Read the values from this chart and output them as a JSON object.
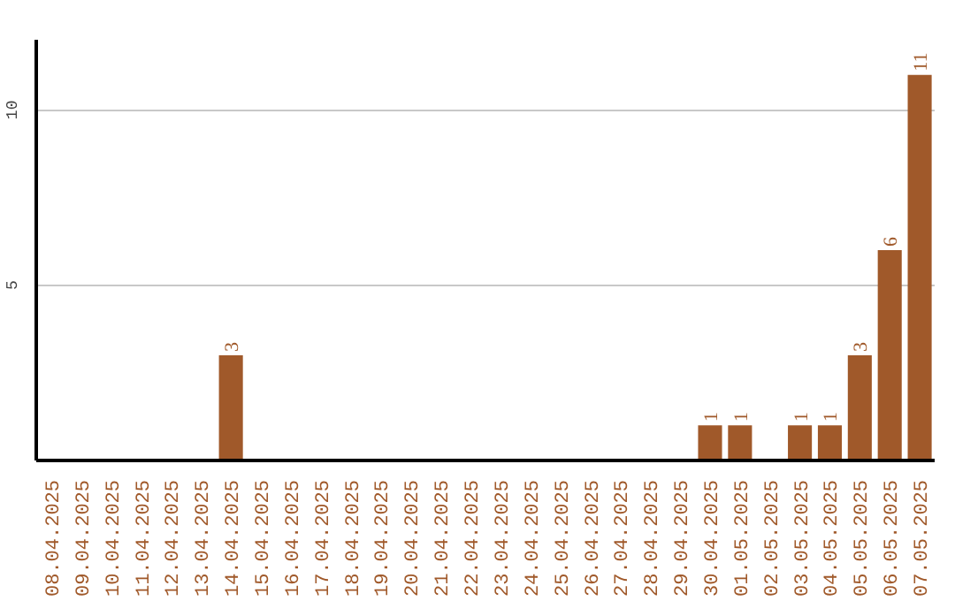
{
  "chart_data": {
    "type": "bar",
    "categories": [
      "08.04.2025",
      "09.04.2025",
      "10.04.2025",
      "11.04.2025",
      "12.04.2025",
      "13.04.2025",
      "14.04.2025",
      "15.04.2025",
      "16.04.2025",
      "17.04.2025",
      "18.04.2025",
      "19.04.2025",
      "20.04.2025",
      "21.04.2025",
      "22.04.2025",
      "23.04.2025",
      "24.04.2025",
      "25.04.2025",
      "26.04.2025",
      "27.04.2025",
      "28.04.2025",
      "29.04.2025",
      "30.04.2025",
      "01.05.2025",
      "02.05.2025",
      "03.05.2025",
      "04.05.2025",
      "05.05.2025",
      "06.05.2025",
      "07.05.2025"
    ],
    "values": [
      0,
      0,
      0,
      0,
      0,
      0,
      3,
      0,
      0,
      0,
      0,
      0,
      0,
      0,
      0,
      0,
      0,
      0,
      0,
      0,
      0,
      0,
      1,
      1,
      0,
      1,
      1,
      3,
      6,
      11
    ],
    "value_labels": [
      null,
      null,
      null,
      null,
      null,
      null,
      "3",
      null,
      null,
      null,
      null,
      null,
      null,
      null,
      null,
      null,
      null,
      null,
      null,
      null,
      null,
      null,
      "1",
      "1",
      null,
      "1",
      "1",
      "3",
      "6",
      "11"
    ],
    "color": "#a0592a",
    "ylim": [
      0,
      12
    ],
    "yticks": [
      5,
      10
    ],
    "grid": "y"
  }
}
